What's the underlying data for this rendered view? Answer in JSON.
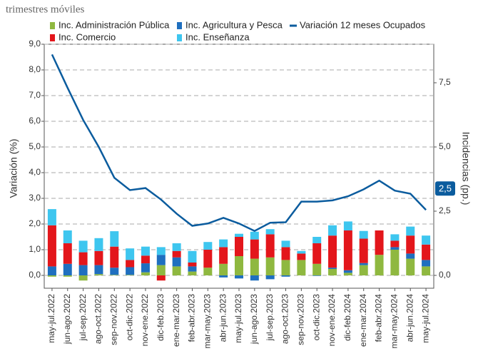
{
  "chart_data": {
    "type": "bar",
    "title": "trimestres móviles",
    "ylabel": "Variación (%)",
    "y2label": "Incidencias (pp.)",
    "categories": [
      "may-jul.2022",
      "jun-ago.2022",
      "jul-sep.2022",
      "ago-oct.2022",
      "sep-nov.2022",
      "oct-dic.2022",
      "nov-ene.2022",
      "dic-feb.2023",
      "ene-mar.2023",
      "feb-abr.2023",
      "mar-may.2023",
      "abr-jun.2023",
      "may-jul.2023",
      "jun-ago.2023",
      "jul-sep.2023",
      "ago-oct.2023",
      "sep-nov.2023",
      "oct-dic.2023",
      "nov-ene.2024",
      "dic-feb.2024",
      "ene-mar.2024",
      "feb-abr.2024",
      "mar-may.2024",
      "abr-jun.2024",
      "may-jul.2024"
    ],
    "series": [
      {
        "name": "Inc. Administración Pública",
        "color": "#8fb840",
        "axis": "y2",
        "values": [
          -0.05,
          -0.05,
          -0.2,
          0.05,
          0.02,
          0.02,
          0.12,
          0.4,
          0.35,
          0.15,
          0.3,
          0.45,
          0.75,
          0.65,
          0.7,
          0.6,
          0.6,
          0.45,
          0.25,
          0.1,
          0.4,
          0.8,
          1.0,
          0.65,
          0.35
        ]
      },
      {
        "name": "Inc. Agricultura y Pesca",
        "color": "#1f6fbf",
        "axis": "y2",
        "values": [
          0.35,
          0.45,
          0.4,
          0.35,
          0.28,
          0.3,
          0.35,
          0.4,
          0.35,
          0.2,
          0.0,
          -0.08,
          -0.12,
          -0.2,
          -0.15,
          -0.05,
          0.0,
          -0.02,
          0.05,
          0.1,
          0.08,
          0.0,
          0.1,
          0.2,
          0.25
        ]
      },
      {
        "name": "Inc. Comercio",
        "color": "#e3161b",
        "axis": "y2",
        "values": [
          1.6,
          0.8,
          0.5,
          0.55,
          0.82,
          0.28,
          0.3,
          -0.2,
          0.25,
          0.15,
          0.7,
          0.65,
          0.75,
          0.75,
          0.9,
          0.5,
          0.25,
          0.8,
          1.25,
          1.55,
          0.95,
          0.95,
          0.25,
          0.7,
          0.6
        ]
      },
      {
        "name": "Inc. Enseñanza",
        "color": "#3ec6ef",
        "axis": "y2",
        "values": [
          0.63,
          0.5,
          0.45,
          0.5,
          0.6,
          0.45,
          0.35,
          0.3,
          0.3,
          0.45,
          0.3,
          0.3,
          0.12,
          0.3,
          0.2,
          0.25,
          0.1,
          0.25,
          0.4,
          0.35,
          0.3,
          0.0,
          0.25,
          0.35,
          0.35
        ]
      },
      {
        "name": "Variación 12 meses Ocupados",
        "color": "#0b5c9e",
        "axis": "y",
        "type": "line",
        "values": [
          8.6,
          7.3,
          6.05,
          5.0,
          3.8,
          3.32,
          3.4,
          2.95,
          2.4,
          1.93,
          2.02,
          2.24,
          2.02,
          1.73,
          2.05,
          2.07,
          2.87,
          2.87,
          2.92,
          3.08,
          3.35,
          3.69,
          3.3,
          3.18,
          2.55
        ]
      }
    ],
    "annotations": [
      {
        "text": "2,5",
        "series": 4,
        "index": 24
      }
    ],
    "ylim": [
      -0.5,
      9.0
    ],
    "yticks": [
      {
        "value": 0,
        "label": "0,0"
      },
      {
        "value": 1,
        "label": "1,0"
      },
      {
        "value": 2,
        "label": "2,0"
      },
      {
        "value": 3,
        "label": "3,0"
      },
      {
        "value": 4,
        "label": "4,0"
      },
      {
        "value": 5,
        "label": "5,0"
      },
      {
        "value": 6,
        "label": "6,0"
      },
      {
        "value": 7,
        "label": "7,0"
      },
      {
        "value": 8,
        "label": "8,0"
      },
      {
        "value": 9,
        "label": "9,0"
      }
    ],
    "y2lim": [
      -0.5,
      9.0
    ],
    "y2ticks": [
      {
        "value": 0,
        "label": "0,0"
      },
      {
        "value": 2.5,
        "label": "2,5"
      },
      {
        "value": 5,
        "label": "5,0"
      },
      {
        "value": 7.5,
        "label": "7,5"
      }
    ],
    "grid": true
  }
}
